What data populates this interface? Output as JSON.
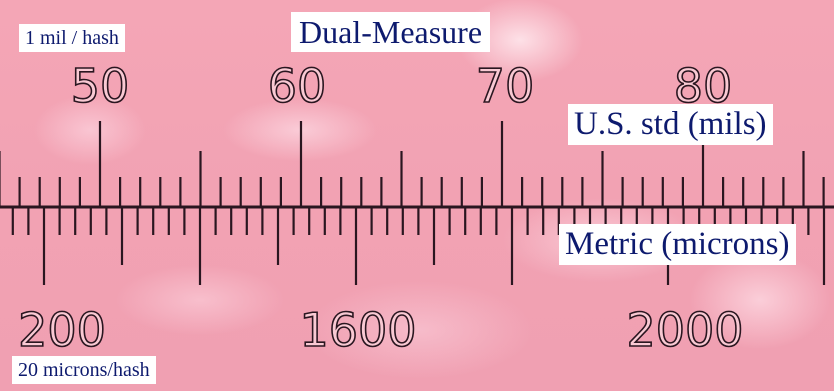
{
  "labels": {
    "hash_note_us": "1 mil / hash",
    "title": "Dual-Measure",
    "us_scale": "U.S. std (mils)",
    "metric_scale": "Metric (microns)",
    "hash_note_metric": "20 microns/hash"
  },
  "scales": {
    "us_numbers": [
      "50",
      "60",
      "70",
      "80"
    ],
    "metric_numbers": [
      "200",
      "1600",
      "2000"
    ]
  },
  "colors": {
    "background": "#f2a7b5",
    "ink": "#2a1620",
    "label_text": "#0d1a6e",
    "label_background": "#ffffff"
  }
}
